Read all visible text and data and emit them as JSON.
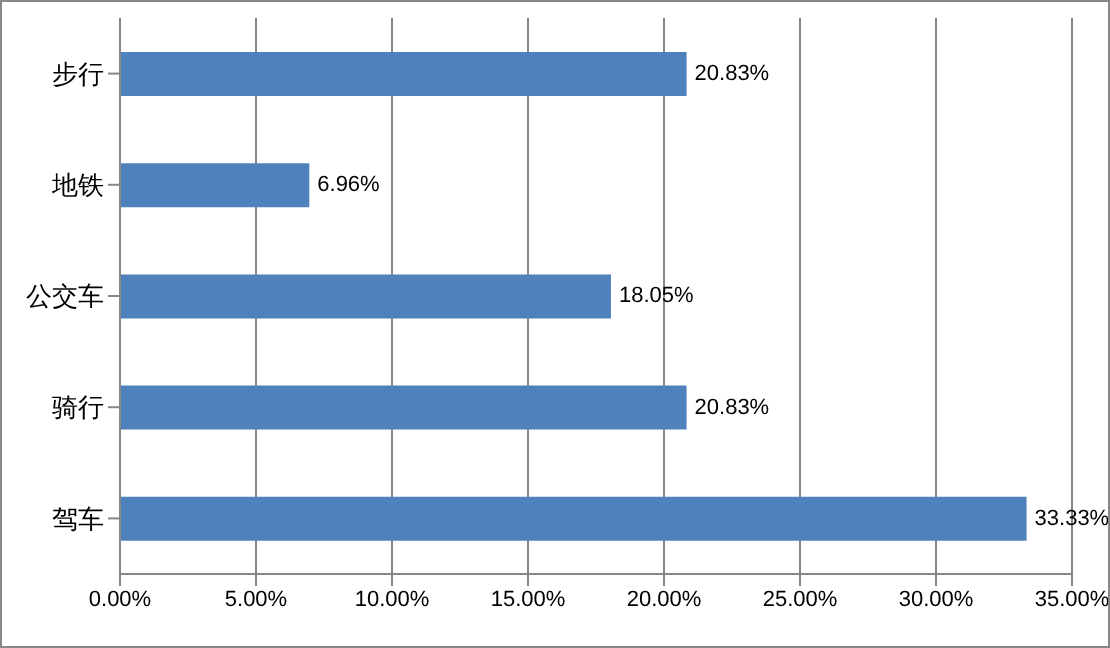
{
  "chart_data": {
    "type": "bar",
    "orientation": "horizontal",
    "categories": [
      "步行",
      "地铁",
      "公交车",
      "骑行",
      "驾车"
    ],
    "values": [
      20.83,
      6.96,
      18.05,
      20.83,
      33.33
    ],
    "value_labels": [
      "20.83%",
      "6.96%",
      "18.05%",
      "20.83%",
      "33.33%"
    ],
    "color": "#4f81bd",
    "xlim": [
      0,
      35
    ],
    "xticks": [
      {
        "value": 0,
        "label": "0.00%"
      },
      {
        "value": 5,
        "label": "5.00%"
      },
      {
        "value": 10,
        "label": "10.00%"
      },
      {
        "value": 15,
        "label": "15.00%"
      },
      {
        "value": 20,
        "label": "20.00%"
      },
      {
        "value": 25,
        "label": "25.00%"
      },
      {
        "value": 30,
        "label": "30.00%"
      },
      {
        "value": 35,
        "label": "35.00%"
      }
    ],
    "grid": "x"
  }
}
